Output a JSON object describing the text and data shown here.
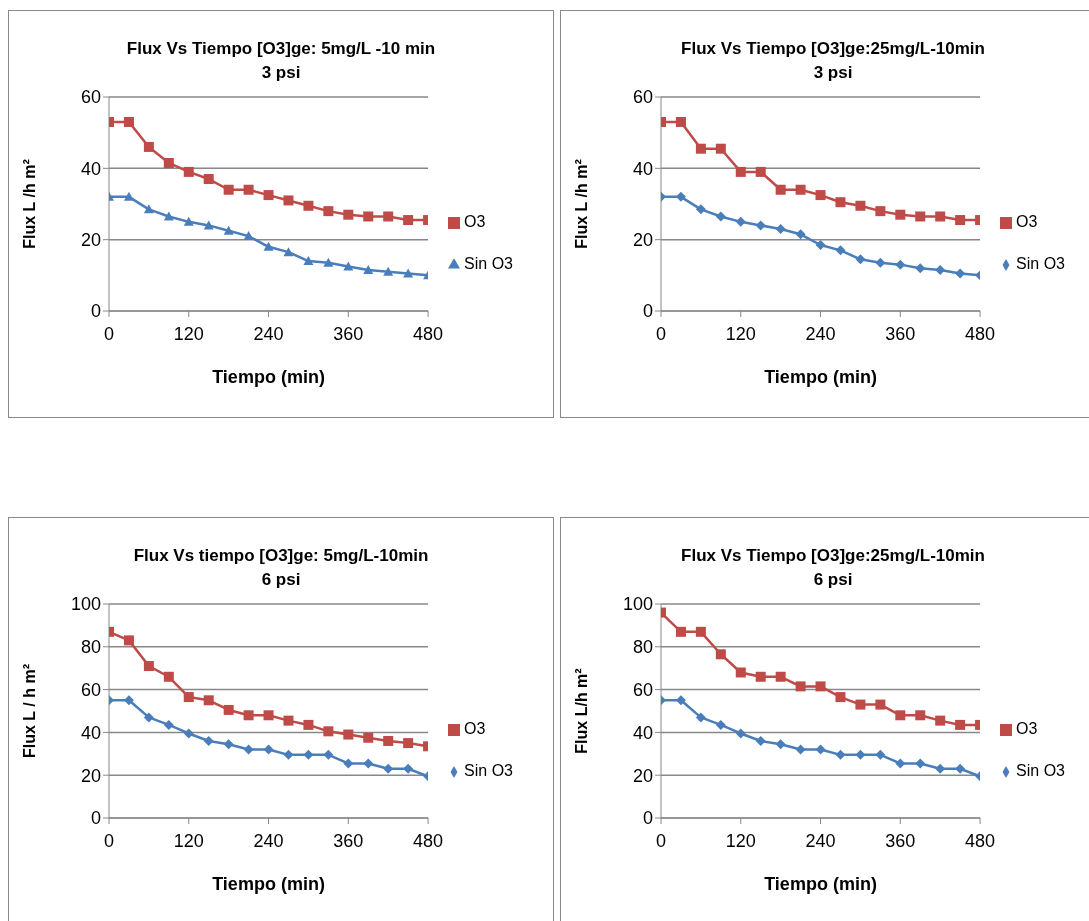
{
  "chart_data": [
    {
      "type": "line",
      "title": "Flux Vs Tiempo [O3]ge: 5mg/L -10 min",
      "subtitle": "3 psi",
      "xlabel": "Tiempo (min)",
      "ylabel": "Flux L /h m²",
      "x": [
        0,
        30,
        60,
        90,
        120,
        150,
        180,
        210,
        240,
        270,
        300,
        330,
        360,
        390,
        420,
        450,
        480
      ],
      "xlim": [
        0,
        480
      ],
      "xticks": [
        0,
        120,
        240,
        360,
        480
      ],
      "ylim": [
        0,
        60
      ],
      "yticks": [
        0,
        20,
        40,
        60
      ],
      "grid": "y",
      "legend": "right",
      "series": [
        {
          "name": "Sin O3",
          "color": "#4a7ebb",
          "marker": "triangle",
          "values": [
            32,
            32,
            28.5,
            26.5,
            25,
            24,
            22.5,
            21,
            18,
            16.5,
            14,
            13.5,
            12.5,
            11.5,
            11,
            10.5,
            10
          ]
        },
        {
          "name": "O3",
          "color": "#be4b48",
          "marker": "square",
          "values": [
            53,
            53,
            46,
            41.5,
            39,
            37,
            34,
            34,
            32.5,
            31,
            29.5,
            28,
            27,
            26.5,
            26.5,
            25.5,
            25.5
          ]
        }
      ]
    },
    {
      "type": "line",
      "title": "Flux Vs Tiempo [O3]ge:25mg/L-10min",
      "subtitle": "3 psi",
      "xlabel": "Tiempo (min)",
      "ylabel": "Flux L /h m²",
      "x": [
        0,
        30,
        60,
        90,
        120,
        150,
        180,
        210,
        240,
        270,
        300,
        330,
        360,
        390,
        420,
        450,
        480
      ],
      "xlim": [
        0,
        480
      ],
      "xticks": [
        0,
        120,
        240,
        360,
        480
      ],
      "ylim": [
        0,
        60
      ],
      "yticks": [
        0,
        20,
        40,
        60
      ],
      "grid": "y",
      "legend": "right",
      "series": [
        {
          "name": "Sin O3",
          "color": "#4a7ebb",
          "marker": "diamond",
          "values": [
            32,
            32,
            28.5,
            26.5,
            25,
            24,
            23,
            21.5,
            18.5,
            17,
            14.5,
            13.5,
            13,
            12,
            11.5,
            10.5,
            10
          ]
        },
        {
          "name": "O3",
          "color": "#be4b48",
          "marker": "square",
          "values": [
            53,
            53,
            45.5,
            45.5,
            39,
            39,
            34,
            34,
            32.5,
            30.5,
            29.5,
            28,
            27,
            26.5,
            26.5,
            25.5,
            25.5
          ]
        }
      ]
    },
    {
      "type": "line",
      "title": "Flux Vs tiempo [O3]ge: 5mg/L-10min",
      "subtitle": "6 psi",
      "xlabel": "Tiempo (min)",
      "ylabel": "Flux L / h m²",
      "x": [
        0,
        30,
        60,
        90,
        120,
        150,
        180,
        210,
        240,
        270,
        300,
        330,
        360,
        390,
        420,
        450,
        480
      ],
      "xlim": [
        0,
        480
      ],
      "xticks": [
        0,
        120,
        240,
        360,
        480
      ],
      "ylim": [
        0,
        100
      ],
      "yticks": [
        0,
        20,
        40,
        60,
        80,
        100
      ],
      "grid": "y",
      "legend": "right",
      "series": [
        {
          "name": "Sin O3",
          "color": "#4a7ebb",
          "marker": "diamond",
          "values": [
            55,
            55,
            47,
            43.5,
            39.5,
            36,
            34.5,
            32,
            32,
            29.5,
            29.5,
            29.5,
            25.5,
            25.5,
            23,
            23,
            19.5
          ]
        },
        {
          "name": "O3",
          "color": "#be4b48",
          "marker": "square",
          "values": [
            87,
            83,
            71,
            66,
            56.5,
            55,
            50.5,
            48,
            48,
            45.5,
            43.5,
            40.5,
            39,
            37.5,
            36,
            35,
            33.5
          ]
        }
      ]
    },
    {
      "type": "line",
      "title": "Flux Vs Tiempo [O3]ge:25mg/L-10min",
      "subtitle": "6 psi",
      "xlabel": "Tiempo (min)",
      "ylabel": "Flux L/h m²",
      "x": [
        0,
        30,
        60,
        90,
        120,
        150,
        180,
        210,
        240,
        270,
        300,
        330,
        360,
        390,
        420,
        450,
        480
      ],
      "xlim": [
        0,
        480
      ],
      "xticks": [
        0,
        120,
        240,
        360,
        480
      ],
      "ylim": [
        0,
        100
      ],
      "yticks": [
        0,
        20,
        40,
        60,
        80,
        100
      ],
      "grid": "y",
      "legend": "right",
      "series": [
        {
          "name": "Sin O3",
          "color": "#4a7ebb",
          "marker": "diamond",
          "values": [
            55,
            55,
            47,
            43.5,
            39.5,
            36,
            34.5,
            32,
            32,
            29.5,
            29.5,
            29.5,
            25.5,
            25.5,
            23,
            23,
            19.5
          ]
        },
        {
          "name": "O3",
          "color": "#be4b48",
          "marker": "square",
          "values": [
            96,
            87,
            87,
            76.5,
            68,
            66,
            66,
            61.5,
            61.5,
            56.5,
            53,
            53,
            48,
            48,
            45.5,
            43.5,
            43.5
          ]
        }
      ]
    }
  ]
}
